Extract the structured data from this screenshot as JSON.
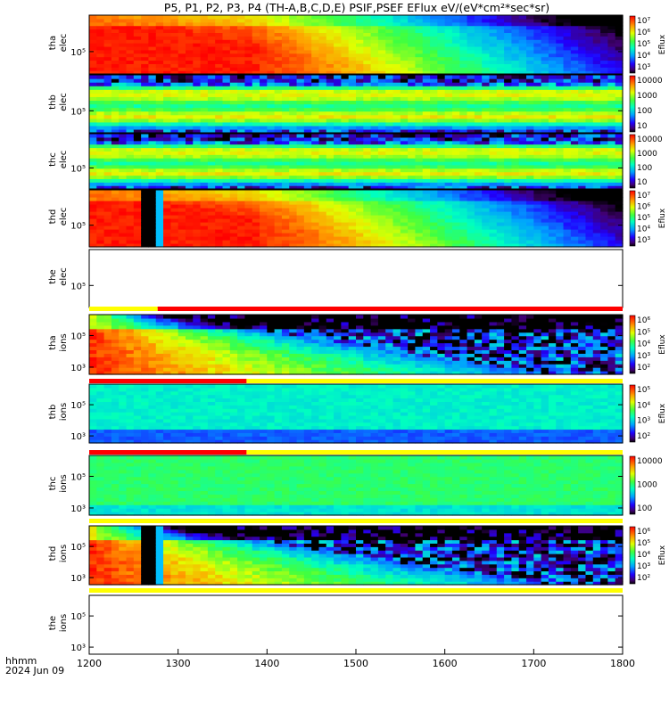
{
  "chart_data": {
    "type": "heatmap",
    "title": "P5, P1, P2, P3, P4 (TH-A,B,C,D,E) PSIF,PSEF EFlux eV/(eV*cm²*sec*sr)",
    "xlabel": "hhmm",
    "date_label": "2024 Jun 09",
    "x_ticks": [
      "1200",
      "1300",
      "1400",
      "1500",
      "1600",
      "1700",
      "1800"
    ],
    "xlim": [
      1200,
      1800
    ],
    "panels": [
      {
        "label1": "tha",
        "label2": "elec",
        "yticks": [
          "10⁵"
        ],
        "has_data": true,
        "pattern": "decay",
        "cbar_label": "Eflux",
        "cbar_ticks": [
          "10⁷",
          "10⁶",
          "10⁵",
          "10⁴",
          "10³"
        ]
      },
      {
        "label1": "thb",
        "label2": "elec",
        "yticks": [
          "10⁵"
        ],
        "has_data": true,
        "pattern": "bands",
        "cbar_label": "",
        "cbar_ticks": [
          "10000",
          "1000",
          "100",
          "10"
        ]
      },
      {
        "label1": "thc",
        "label2": "elec",
        "yticks": [
          "10⁵"
        ],
        "has_data": true,
        "pattern": "bands",
        "cbar_label": "",
        "cbar_ticks": [
          "10000",
          "1000",
          "100",
          "10"
        ]
      },
      {
        "label1": "thd",
        "label2": "elec",
        "yticks": [
          "10⁵"
        ],
        "has_data": true,
        "pattern": "decay_gap",
        "cbar_label": "Eflux",
        "cbar_ticks": [
          "10⁷",
          "10⁶",
          "10⁵",
          "10⁴",
          "10³"
        ]
      },
      {
        "label1": "the",
        "label2": "elec",
        "yticks": [
          "10⁵"
        ],
        "has_data": false,
        "pattern": "empty",
        "cbar_label": "",
        "cbar_ticks": []
      },
      {
        "label1": "tha",
        "label2": "ions",
        "yticks": [
          "10⁵",
          "10³"
        ],
        "has_data": true,
        "pattern": "ions_decay",
        "cbar_label": "Eflux",
        "cbar_ticks": [
          "10⁶",
          "10⁵",
          "10⁴",
          "10³",
          "10²"
        ]
      },
      {
        "label1": "thb",
        "label2": "ions",
        "yticks": [
          "10⁵",
          "10³"
        ],
        "has_data": true,
        "pattern": "flat_cyan",
        "cbar_label": "Eflux",
        "cbar_ticks": [
          "10⁵",
          "10⁴",
          "10³",
          "10²"
        ]
      },
      {
        "label1": "thc",
        "label2": "ions",
        "yticks": [
          "10⁵",
          "10³"
        ],
        "has_data": true,
        "pattern": "flat_green",
        "cbar_label": "",
        "cbar_ticks": [
          "10000",
          "1000",
          "100"
        ]
      },
      {
        "label1": "thd",
        "label2": "ions",
        "yticks": [
          "10⁵",
          "10³"
        ],
        "has_data": true,
        "pattern": "ions_decay_gap",
        "cbar_label": "Eflux",
        "cbar_ticks": [
          "10⁶",
          "10⁵",
          "10⁴",
          "10³",
          "10²"
        ]
      },
      {
        "label1": "the",
        "label2": "ions",
        "yticks": [
          "10⁵",
          "10³"
        ],
        "has_data": false,
        "pattern": "empty",
        "cbar_label": "",
        "cbar_ticks": []
      }
    ],
    "status_bars": [
      {
        "after_panel": 4,
        "segments": [
          {
            "x0": 1200,
            "x1": 1277,
            "color": "#ffff00"
          },
          {
            "x0": 1277,
            "x1": 1800,
            "color": "#ff0000"
          }
        ]
      },
      {
        "after_panel": 5,
        "segments": [
          {
            "x0": 1200,
            "x1": 1377,
            "color": "#ff0000"
          },
          {
            "x0": 1377,
            "x1": 1800,
            "color": "#ffff00"
          }
        ]
      },
      {
        "after_panel": 6,
        "segments": [
          {
            "x0": 1200,
            "x1": 1377,
            "color": "#ff0000"
          },
          {
            "x0": 1377,
            "x1": 1800,
            "color": "#ffff00"
          }
        ]
      },
      {
        "after_panel": 7,
        "segments": [
          {
            "x0": 1200,
            "x1": 1800,
            "color": "#ffff00"
          }
        ]
      },
      {
        "after_panel": 8,
        "segments": [
          {
            "x0": 1200,
            "x1": 1800,
            "color": "#ffff00"
          }
        ]
      }
    ],
    "gaps": [
      {
        "x0": 1256,
        "x1": 1282
      }
    ],
    "grid": false,
    "legend": "none"
  }
}
